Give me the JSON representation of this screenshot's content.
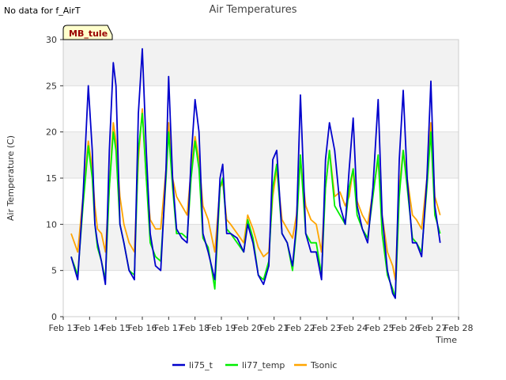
{
  "note": "No data for f_AirT",
  "site_badge": "MB_tule",
  "chart_data": {
    "type": "line",
    "title": "Air Temperatures",
    "xlabel": "Time",
    "ylabel": "Air Temperature (C)",
    "xlim": [
      "Feb 13",
      "Feb 28"
    ],
    "ylim": [
      0,
      30
    ],
    "x_ticks": [
      "Feb 13",
      "Feb 14",
      "Feb 15",
      "Feb 16",
      "Feb 17",
      "Feb 18",
      "Feb 19",
      "Feb 20",
      "Feb 21",
      "Feb 22",
      "Feb 23",
      "Feb 24",
      "Feb 25",
      "Feb 26",
      "Feb 27",
      "Feb 28"
    ],
    "y_ticks": [
      0,
      5,
      10,
      15,
      20,
      25,
      30
    ],
    "background_bands": [
      [
        5,
        10
      ],
      [
        15,
        20
      ],
      [
        25,
        30
      ]
    ],
    "grid": true,
    "legend": "bottom-center",
    "x": [
      13.3,
      13.55,
      13.75,
      13.95,
      14.1,
      14.2,
      14.3,
      14.45,
      14.6,
      14.75,
      14.9,
      15.0,
      15.15,
      15.3,
      15.5,
      15.7,
      15.85,
      16.0,
      16.15,
      16.3,
      16.5,
      16.7,
      16.9,
      17.0,
      17.15,
      17.3,
      17.5,
      17.7,
      17.85,
      18.0,
      18.15,
      18.3,
      18.5,
      18.75,
      18.95,
      19.05,
      19.2,
      19.35,
      19.6,
      19.85,
      20.0,
      20.2,
      20.4,
      20.6,
      20.8,
      20.95,
      21.1,
      21.3,
      21.5,
      21.7,
      21.85,
      22.0,
      22.2,
      22.4,
      22.6,
      22.8,
      22.95,
      23.1,
      23.3,
      23.5,
      23.7,
      23.85,
      24.0,
      24.15,
      24.35,
      24.55,
      24.75,
      24.95,
      25.1,
      25.3,
      25.5,
      25.6,
      25.75,
      25.9,
      26.05,
      26.25,
      26.4,
      26.6,
      26.8,
      26.95,
      27.1,
      27.3
    ],
    "series": [
      {
        "name": "li75_t",
        "color": "#0000cc",
        "values": [
          6.5,
          4.0,
          13.0,
          25.0,
          18.0,
          10.0,
          8.0,
          6.0,
          3.5,
          18.0,
          27.5,
          25.0,
          10.0,
          8.0,
          5.0,
          4.0,
          22.0,
          29.0,
          18.0,
          9.0,
          5.5,
          5.0,
          16.0,
          26.0,
          15.0,
          9.5,
          8.5,
          8.0,
          17.0,
          23.5,
          20.0,
          9.0,
          7.0,
          4.0,
          15.0,
          16.5,
          9.0,
          9.0,
          8.5,
          7.0,
          10.0,
          8.0,
          4.5,
          3.5,
          5.5,
          17.0,
          18.0,
          9.0,
          8.0,
          5.5,
          10.0,
          24.0,
          9.0,
          7.0,
          7.0,
          4.0,
          17.0,
          21.0,
          18.0,
          12.0,
          10.0,
          16.0,
          21.5,
          12.0,
          9.5,
          8.0,
          14.0,
          23.5,
          11.0,
          5.0,
          2.5,
          2.0,
          17.0,
          24.5,
          15.0,
          8.0,
          8.0,
          6.5,
          15.0,
          25.5,
          12.0,
          8.0
        ]
      },
      {
        "name": "li77_temp",
        "color": "#00ee00",
        "values": [
          6.5,
          4.5,
          12.0,
          18.5,
          15.0,
          10.0,
          7.5,
          6.0,
          4.0,
          14.0,
          20.0,
          18.0,
          10.0,
          8.0,
          5.0,
          4.5,
          18.0,
          22.0,
          15.0,
          8.0,
          6.5,
          6.0,
          15.0,
          20.0,
          14.0,
          9.0,
          9.0,
          8.5,
          15.0,
          19.0,
          16.0,
          8.5,
          7.5,
          3.0,
          14.0,
          15.0,
          9.5,
          9.0,
          8.0,
          7.0,
          10.5,
          8.5,
          4.5,
          4.0,
          6.0,
          14.0,
          16.5,
          9.0,
          8.0,
          5.0,
          9.5,
          17.5,
          9.0,
          8.0,
          8.0,
          4.5,
          14.0,
          18.0,
          12.0,
          11.0,
          10.0,
          14.0,
          16.0,
          11.0,
          9.5,
          8.5,
          13.0,
          17.5,
          9.0,
          4.5,
          3.0,
          2.0,
          13.0,
          18.0,
          14.0,
          8.5,
          8.0,
          7.0,
          14.0,
          20.0,
          11.0,
          9.0
        ]
      },
      {
        "name": "Tsonic",
        "color": "#ffa500",
        "values": [
          9.0,
          7.0,
          13.0,
          19.0,
          16.0,
          12.0,
          9.5,
          9.0,
          7.0,
          14.0,
          21.0,
          19.0,
          13.0,
          10.0,
          8.0,
          7.0,
          17.0,
          22.5,
          15.0,
          10.5,
          9.5,
          9.5,
          16.0,
          21.0,
          15.0,
          13.0,
          12.0,
          11.0,
          16.0,
          19.5,
          17.0,
          12.0,
          10.5,
          7.0,
          14.0,
          14.5,
          10.5,
          10.0,
          9.0,
          8.0,
          11.0,
          9.5,
          7.5,
          6.5,
          7.0,
          13.0,
          16.0,
          10.5,
          9.5,
          8.5,
          11.0,
          17.0,
          12.0,
          10.5,
          10.0,
          7.0,
          14.0,
          18.0,
          13.0,
          13.5,
          12.0,
          13.0,
          16.0,
          12.5,
          11.0,
          10.0,
          13.5,
          17.0,
          11.0,
          7.0,
          5.5,
          4.0,
          14.0,
          18.0,
          15.0,
          11.0,
          10.5,
          9.5,
          15.0,
          21.0,
          13.0,
          11.0
        ]
      }
    ]
  }
}
